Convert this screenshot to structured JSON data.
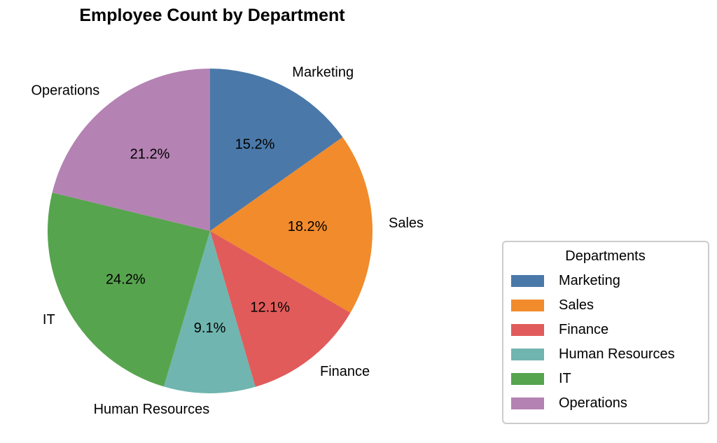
{
  "page": {
    "background": "#ffffff"
  },
  "chart_data": {
    "type": "pie",
    "title": "Employee Count by Department",
    "categories": [
      "Marketing",
      "Sales",
      "Finance",
      "Human Resources",
      "IT",
      "Operations"
    ],
    "values": [
      15.2,
      18.2,
      12.1,
      9.1,
      24.2,
      21.2
    ],
    "percent_labels": [
      "15.2%",
      "18.2%",
      "12.1%",
      "9.1%",
      "24.2%",
      "21.2%"
    ],
    "colors": [
      "#4A79A9",
      "#F18B2C",
      "#E15B5B",
      "#70B5AF",
      "#57A44F",
      "#B482B3"
    ],
    "start_angle": "top",
    "direction": "clockwise",
    "label_distance": 1.1,
    "pct_distance": 0.6,
    "grid": false,
    "legend": {
      "title": "Departments",
      "position": "right",
      "entries": [
        "Marketing",
        "Sales",
        "Finance",
        "Human Resources",
        "IT",
        "Operations"
      ]
    }
  }
}
